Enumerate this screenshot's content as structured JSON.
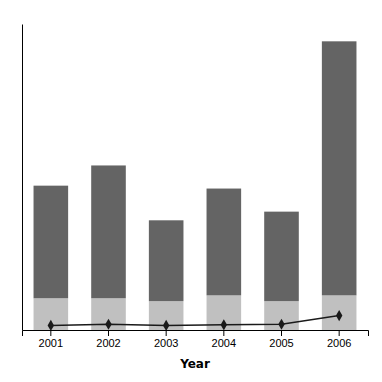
{
  "chart_data": {
    "type": "bar",
    "xlabel": "Year",
    "categories": [
      "2001",
      "2002",
      "2003",
      "2004",
      "2005",
      "2006"
    ],
    "series": [
      {
        "type": "bar",
        "color": "#c0c0c0",
        "values": [
          55,
          55,
          50,
          60,
          50,
          60
        ]
      },
      {
        "type": "bar",
        "color": "#646464",
        "values": [
          195,
          230,
          140,
          185,
          155,
          440
        ]
      },
      {
        "type": "line",
        "color": "#1a1a1a",
        "marker": "diamond",
        "values": [
          8,
          10,
          8,
          9,
          10,
          25
        ]
      }
    ],
    "stacked": true,
    "ylim": [
      0,
      530
    ],
    "grid": false,
    "tick_labels": "x"
  }
}
